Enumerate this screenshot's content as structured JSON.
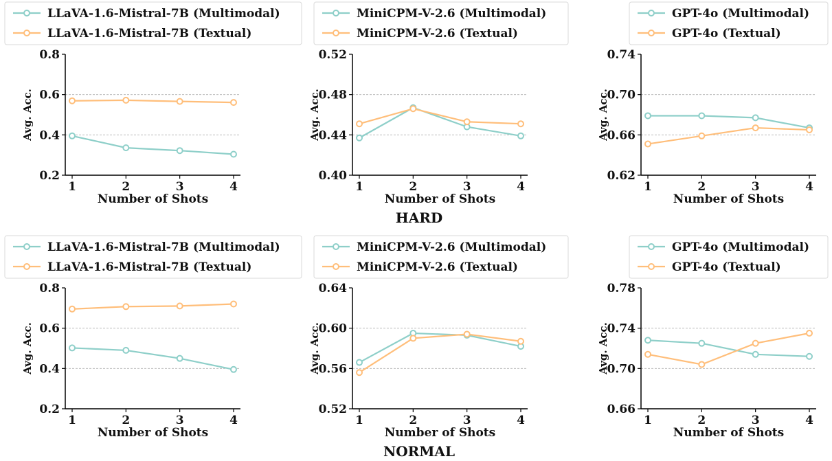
{
  "colors": {
    "multimodal": "#8ecfc9",
    "textual": "#ffbe7a",
    "grid": "#b0b0b0",
    "axis": "#000000"
  },
  "groups": [
    {
      "caption": "HARD"
    },
    {
      "caption": "NORMAL"
    }
  ],
  "chart_data": [
    {
      "type": "line",
      "group": "HARD",
      "x": [
        1,
        2,
        3,
        4
      ],
      "xlabel": "Number of Shots",
      "ylabel": "Avg. Acc.",
      "ylim": [
        0.2,
        0.8
      ],
      "yticks": [
        "0.2",
        "0.4",
        "0.6",
        "0.8"
      ],
      "grid": "y-dashed",
      "legend": "top",
      "series": [
        {
          "name": "LLaVA-1.6-Mistral-7B (Multimodal)",
          "style": "multimodal",
          "values": [
            0.395,
            0.336,
            0.322,
            0.304
          ]
        },
        {
          "name": "LLaVA-1.6-Mistral-7B (Textual)",
          "style": "textual",
          "values": [
            0.569,
            0.572,
            0.566,
            0.561
          ]
        }
      ]
    },
    {
      "type": "line",
      "group": "HARD",
      "x": [
        1,
        2,
        3,
        4
      ],
      "xlabel": "Number of Shots",
      "ylabel": "Avg. Acc.",
      "ylim": [
        0.4,
        0.52
      ],
      "yticks": [
        "0.40",
        "0.44",
        "0.48",
        "0.52"
      ],
      "grid": "y-dashed",
      "legend": "top",
      "series": [
        {
          "name": "MiniCPM-V-2.6 (Multimodal)",
          "style": "multimodal",
          "values": [
            0.437,
            0.467,
            0.448,
            0.439
          ]
        },
        {
          "name": "MiniCPM-V-2.6 (Textual)",
          "style": "textual",
          "values": [
            0.451,
            0.466,
            0.453,
            0.451
          ]
        }
      ]
    },
    {
      "type": "line",
      "group": "HARD",
      "x": [
        1,
        2,
        3,
        4
      ],
      "xlabel": "Number of Shots",
      "ylabel": "Avg. Acc.",
      "ylim": [
        0.62,
        0.74
      ],
      "yticks": [
        "0.62",
        "0.66",
        "0.70",
        "0.74"
      ],
      "grid": "y-dashed",
      "legend": "top",
      "series": [
        {
          "name": "GPT-4o (Multimodal)",
          "style": "multimodal",
          "values": [
            0.679,
            0.679,
            0.677,
            0.667
          ]
        },
        {
          "name": "GPT-4o (Textual)",
          "style": "textual",
          "values": [
            0.651,
            0.659,
            0.667,
            0.665
          ]
        }
      ]
    },
    {
      "type": "line",
      "group": "NORMAL",
      "x": [
        1,
        2,
        3,
        4
      ],
      "xlabel": "Number of Shots",
      "ylabel": "Avg. Acc.",
      "ylim": [
        0.2,
        0.8
      ],
      "yticks": [
        "0.2",
        "0.4",
        "0.6",
        "0.8"
      ],
      "grid": "y-dashed",
      "legend": "top",
      "series": [
        {
          "name": "LLaVA-1.6-Mistral-7B (Multimodal)",
          "style": "multimodal",
          "values": [
            0.502,
            0.49,
            0.45,
            0.395
          ]
        },
        {
          "name": "LLaVA-1.6-Mistral-7B (Textual)",
          "style": "textual",
          "values": [
            0.695,
            0.707,
            0.71,
            0.72
          ]
        }
      ]
    },
    {
      "type": "line",
      "group": "NORMAL",
      "x": [
        1,
        2,
        3,
        4
      ],
      "xlabel": "Number of Shots",
      "ylabel": "Avg. Acc.",
      "ylim": [
        0.52,
        0.64
      ],
      "yticks": [
        "0.52",
        "0.56",
        "0.60",
        "0.64"
      ],
      "grid": "y-dashed",
      "legend": "top",
      "series": [
        {
          "name": "MiniCPM-V-2.6 (Multimodal)",
          "style": "multimodal",
          "values": [
            0.566,
            0.595,
            0.593,
            0.582
          ]
        },
        {
          "name": "MiniCPM-V-2.6 (Textual)",
          "style": "textual",
          "values": [
            0.556,
            0.59,
            0.594,
            0.587
          ]
        }
      ]
    },
    {
      "type": "line",
      "group": "NORMAL",
      "x": [
        1,
        2,
        3,
        4
      ],
      "xlabel": "Number of Shots",
      "ylabel": "Avg. Acc.",
      "ylim": [
        0.66,
        0.78
      ],
      "yticks": [
        "0.66",
        "0.70",
        "0.74",
        "0.78"
      ],
      "grid": "y-dashed",
      "legend": "top",
      "series": [
        {
          "name": "GPT-4o (Multimodal)",
          "style": "multimodal",
          "values": [
            0.728,
            0.725,
            0.714,
            0.712
          ]
        },
        {
          "name": "GPT-4o (Textual)",
          "style": "textual",
          "values": [
            0.714,
            0.704,
            0.725,
            0.735
          ]
        }
      ]
    }
  ]
}
